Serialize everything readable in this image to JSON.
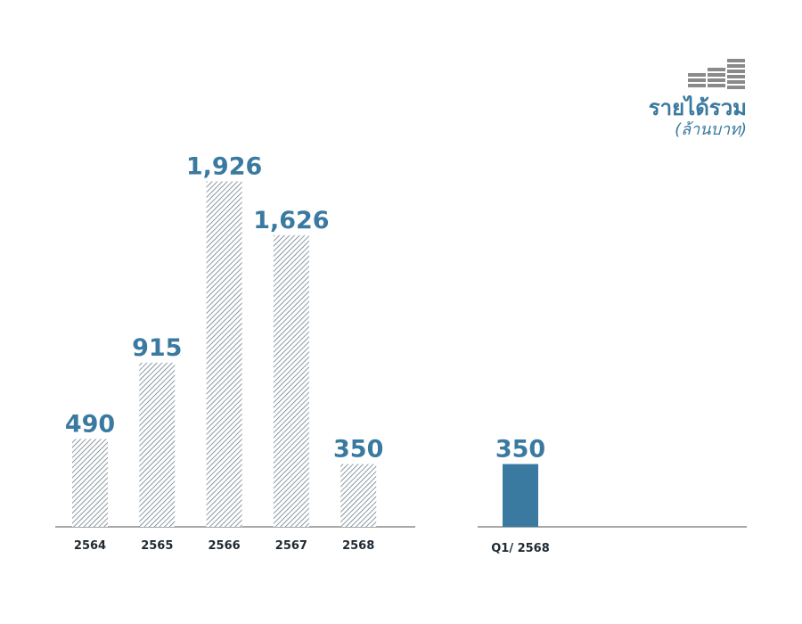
{
  "legend": {
    "icon": "building-icon",
    "title": "รายได้รวม",
    "unit": "(ล้านบาท)"
  },
  "colors": {
    "accent": "#3a7aa0",
    "axis": "#8a8a8a",
    "hatch_stroke": "#5a6e7a",
    "hatch_bg": "#ffffff",
    "icon": "#8a8a8a",
    "label_dark": "#1f2a33"
  },
  "chart_data": [
    {
      "type": "bar",
      "categories": [
        "2564",
        "2565",
        "2566",
        "2567",
        "2568"
      ],
      "values": [
        490,
        915,
        1926,
        1626,
        350
      ],
      "value_labels": [
        "490",
        "915",
        "1,926",
        "1,626",
        "350"
      ],
      "ylim": [
        0,
        2000
      ],
      "style": "hatched",
      "grid": false
    },
    {
      "type": "bar",
      "categories": [
        "Q1/ 2568"
      ],
      "values": [
        350
      ],
      "value_labels": [
        "350"
      ],
      "ylim": [
        0,
        2000
      ],
      "style": "solid",
      "grid": false
    }
  ]
}
